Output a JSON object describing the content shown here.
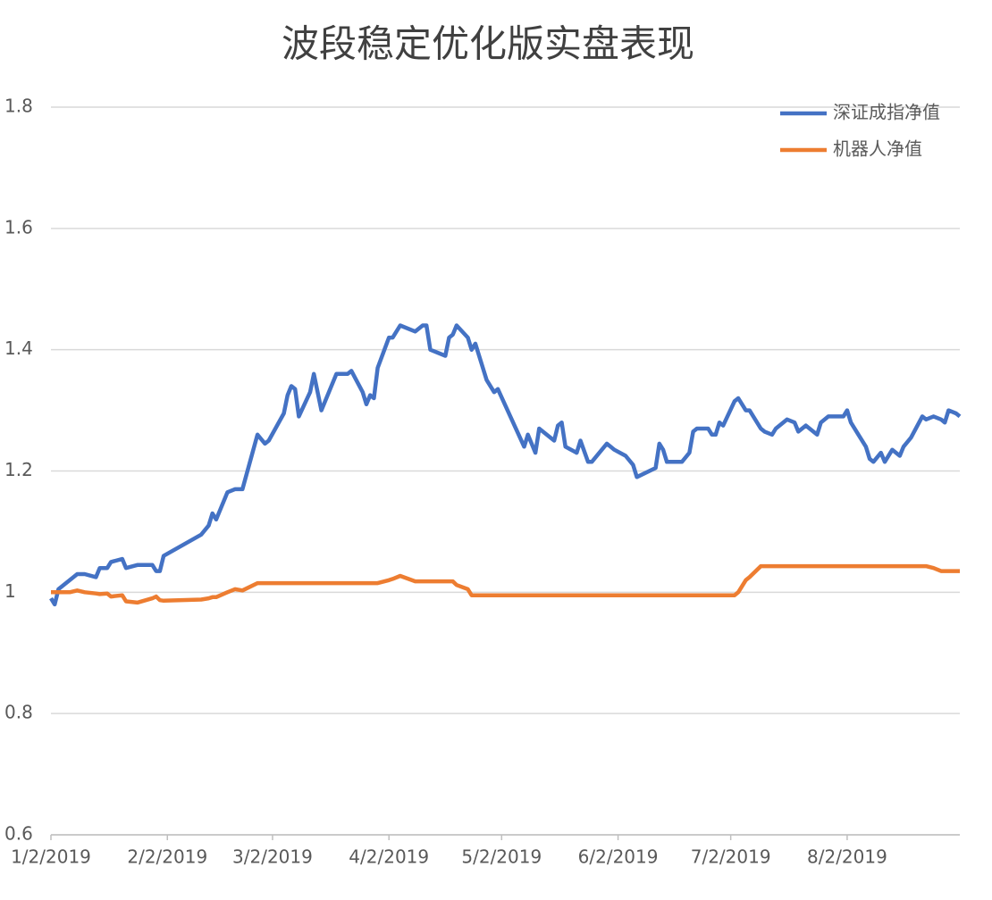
{
  "chart_data": {
    "type": "line",
    "title": "波段稳定优化版实盘表现",
    "x": [
      "1/2/2019",
      "1/3/2019",
      "1/4/2019",
      "1/7/2019",
      "1/9/2019",
      "1/11/2019",
      "1/14/2019",
      "1/15/2019",
      "1/17/2019",
      "1/18/2019",
      "1/21/2019",
      "1/22/2019",
      "1/25/2019",
      "1/29/2019",
      "1/30/2019",
      "1/31/2019",
      "2/1/2019",
      "2/11/2019",
      "2/13/2019",
      "2/14/2019",
      "2/15/2019",
      "2/18/2019",
      "2/20/2019",
      "2/22/2019",
      "2/26/2019",
      "2/28/2019",
      "3/1/2019",
      "3/5/2019",
      "3/6/2019",
      "3/7/2019",
      "3/8/2019",
      "3/9/2019",
      "3/12/2019",
      "3/13/2019",
      "3/15/2019",
      "3/19/2019",
      "3/21/2019",
      "3/22/2019",
      "3/23/2019",
      "3/26/2019",
      "3/27/2019",
      "3/28/2019",
      "3/29/2019",
      "3/30/2019",
      "4/2/2019",
      "4/3/2019",
      "4/5/2019",
      "4/9/2019",
      "4/11/2019",
      "4/12/2019",
      "4/13/2019",
      "4/17/2019",
      "4/18/2019",
      "4/19/2019",
      "4/20/2019",
      "4/23/2019",
      "4/24/2019",
      "4/25/2019",
      "4/27/2019",
      "4/28/2019",
      "4/30/2019",
      "5/1/2019",
      "5/8/2019",
      "5/9/2019",
      "5/11/2019",
      "5/12/2019",
      "5/16/2019",
      "5/17/2019",
      "5/18/2019",
      "5/19/2019",
      "5/22/2019",
      "5/23/2019",
      "5/25/2019",
      "5/26/2019",
      "5/30/2019",
      "5/31/2019",
      "6/1/2019",
      "6/4/2019",
      "6/6/2019",
      "6/7/2019",
      "6/12/2019",
      "6/13/2019",
      "6/14/2019",
      "6/15/2019",
      "6/19/2019",
      "6/21/2019",
      "6/22/2019",
      "6/23/2019",
      "6/26/2019",
      "6/27/2019",
      "6/28/2019",
      "6/29/2019",
      "6/30/2019",
      "7/3/2019",
      "7/4/2019",
      "7/6/2019",
      "7/7/2019",
      "7/10/2019",
      "7/11/2019",
      "7/13/2019",
      "7/14/2019",
      "7/17/2019",
      "7/19/2019",
      "7/20/2019",
      "7/22/2019",
      "7/25/2019",
      "7/26/2019",
      "7/28/2019",
      "8/1/2019",
      "8/2/2019",
      "8/3/2019",
      "8/5/2019",
      "8/7/2019",
      "8/8/2019",
      "8/9/2019",
      "8/11/2019",
      "8/12/2019",
      "8/14/2019",
      "8/16/2019",
      "8/17/2019",
      "8/19/2019",
      "8/22/2019",
      "8/23/2019",
      "8/25/2019",
      "8/27/2019",
      "8/28/2019",
      "8/29/2019",
      "8/31/2019",
      "9/1/2019"
    ],
    "series": [
      {
        "name": "深证成指净值",
        "color": "#4472c4",
        "values": [
          0.99,
          0.98,
          1.005,
          1.02,
          1.03,
          1.03,
          1.025,
          1.04,
          1.04,
          1.05,
          1.055,
          1.04,
          1.045,
          1.045,
          1.035,
          1.035,
          1.06,
          1.095,
          1.11,
          1.13,
          1.12,
          1.165,
          1.17,
          1.17,
          1.26,
          1.245,
          1.25,
          1.295,
          1.325,
          1.34,
          1.335,
          1.29,
          1.33,
          1.36,
          1.3,
          1.36,
          1.36,
          1.36,
          1.365,
          1.33,
          1.31,
          1.325,
          1.32,
          1.37,
          1.42,
          1.42,
          1.44,
          1.43,
          1.44,
          1.44,
          1.4,
          1.39,
          1.42,
          1.425,
          1.44,
          1.42,
          1.4,
          1.41,
          1.37,
          1.35,
          1.33,
          1.335,
          1.24,
          1.26,
          1.23,
          1.27,
          1.25,
          1.275,
          1.28,
          1.24,
          1.23,
          1.25,
          1.215,
          1.215,
          1.245,
          1.24,
          1.235,
          1.225,
          1.21,
          1.19,
          1.205,
          1.245,
          1.235,
          1.215,
          1.215,
          1.23,
          1.265,
          1.27,
          1.27,
          1.26,
          1.26,
          1.28,
          1.275,
          1.315,
          1.32,
          1.3,
          1.3,
          1.27,
          1.265,
          1.26,
          1.27,
          1.285,
          1.28,
          1.265,
          1.275,
          1.26,
          1.28,
          1.29,
          1.29,
          1.3,
          1.28,
          1.26,
          1.24,
          1.22,
          1.215,
          1.23,
          1.215,
          1.235,
          1.225,
          1.24,
          1.255,
          1.29,
          1.285,
          1.29,
          1.285,
          1.28,
          1.3,
          1.295,
          1.29
        ]
      },
      {
        "name": "机器人净值",
        "color": "#ed7d31",
        "values": [
          1.0,
          1.0,
          1.0,
          1.0,
          1.003,
          1.0,
          0.998,
          0.997,
          0.998,
          0.993,
          0.995,
          0.985,
          0.983,
          0.99,
          0.993,
          0.987,
          0.986,
          0.988,
          0.99,
          0.992,
          0.992,
          1.0,
          1.005,
          1.003,
          1.015,
          1.015,
          1.015,
          1.015,
          1.015,
          1.015,
          1.015,
          1.015,
          1.015,
          1.015,
          1.015,
          1.015,
          1.015,
          1.015,
          1.015,
          1.015,
          1.015,
          1.015,
          1.015,
          1.015,
          1.02,
          1.022,
          1.027,
          1.018,
          1.018,
          1.018,
          1.018,
          1.018,
          1.018,
          1.018,
          1.012,
          1.005,
          0.995,
          0.995,
          0.995,
          0.995,
          0.995,
          0.995,
          0.995,
          0.995,
          0.995,
          0.995,
          0.995,
          0.995,
          0.995,
          0.995,
          0.995,
          0.995,
          0.995,
          0.995,
          0.995,
          0.995,
          0.995,
          0.995,
          0.995,
          0.995,
          0.995,
          0.995,
          0.995,
          0.995,
          0.995,
          0.995,
          0.995,
          0.995,
          0.995,
          0.995,
          0.995,
          0.995,
          0.995,
          0.995,
          1.0,
          1.02,
          1.025,
          1.043,
          1.043,
          1.043,
          1.043,
          1.043,
          1.043,
          1.043,
          1.043,
          1.043,
          1.043,
          1.043,
          1.043,
          1.043,
          1.043,
          1.043,
          1.043,
          1.043,
          1.043,
          1.043,
          1.043,
          1.043,
          1.043,
          1.043,
          1.043,
          1.043,
          1.043,
          1.04,
          1.035,
          1.035,
          1.035,
          1.035,
          1.035
        ]
      }
    ],
    "xlim": [
      "1/2/2019",
      "9/1/2019"
    ],
    "xticks": [
      "1/2/2019",
      "2/2/2019",
      "3/2/2019",
      "4/2/2019",
      "5/2/2019",
      "6/2/2019",
      "7/2/2019",
      "8/2/2019"
    ],
    "ylim": [
      0.6,
      1.8
    ],
    "yticks": [
      0.6,
      0.8,
      1,
      1.2,
      1.4,
      1.6,
      1.8
    ],
    "grid": true,
    "legend": "top-right"
  }
}
